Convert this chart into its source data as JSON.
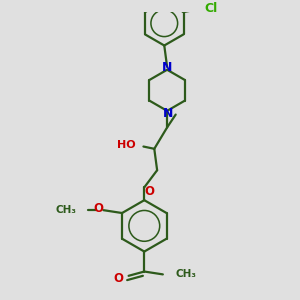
{
  "bg_color": "#e0e0e0",
  "bond_color": "#2d5a1b",
  "N_color": "#0000cc",
  "O_color": "#cc0000",
  "Cl_color": "#33aa00",
  "line_width": 1.6,
  "figsize": [
    3.0,
    3.0
  ],
  "dpi": 100,
  "xlim": [
    0,
    10
  ],
  "ylim": [
    0,
    10
  ]
}
